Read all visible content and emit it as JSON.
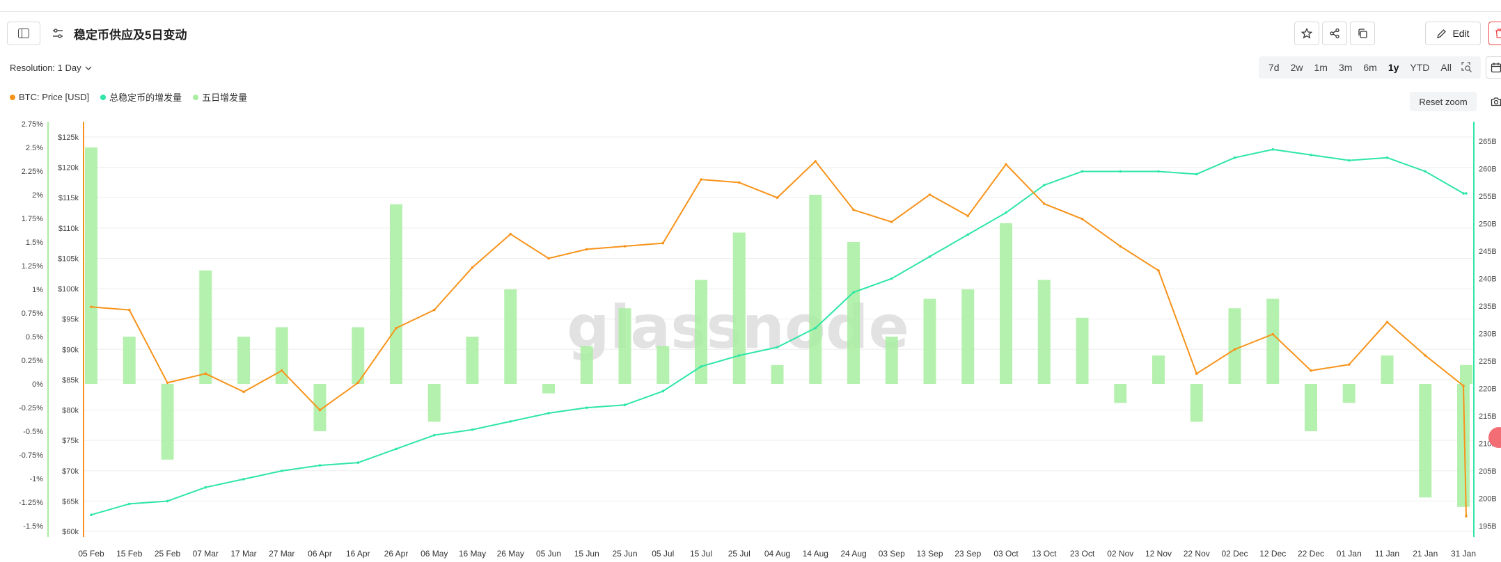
{
  "header": {
    "title": "稳定币供应及5日变动",
    "edit_label": "Edit",
    "resolution_label": "Resolution: 1 Day"
  },
  "timeframes": [
    "7d",
    "2w",
    "1m",
    "3m",
    "6m",
    "1y",
    "YTD",
    "All"
  ],
  "active_timeframe": "1y",
  "reset_zoom_label": "Reset zoom",
  "watermark": "glassnode",
  "icons": [
    "sidebar-toggle-icon",
    "settings-icon",
    "chevron-down-icon",
    "star-icon",
    "share-icon",
    "copy-icon",
    "pencil-icon",
    "trash-icon",
    "zoom-select-icon",
    "calendar-icon",
    "camera-icon"
  ],
  "colors": {
    "btc_price": "#f7931a",
    "stablecoin_supply": "#2ee6a6",
    "five_day_change": "#a8eea0",
    "delete": "#f04141"
  },
  "chart_data": {
    "type": "line",
    "legend_placement": "top-left",
    "grid": true,
    "series": [
      {
        "name": "BTC: Price [USD]",
        "kind": "line",
        "axis": "price",
        "color": "#f7931a",
        "x": [
          "05 Feb",
          "15 Feb",
          "25 Feb",
          "07 Mar",
          "17 Mar",
          "27 Mar",
          "06 Apr",
          "16 Apr",
          "26 Apr",
          "06 May",
          "16 May",
          "26 May",
          "05 Jun",
          "15 Jun",
          "25 Jun",
          "05 Jul",
          "15 Jul",
          "25 Jul",
          "04 Aug",
          "14 Aug",
          "24 Aug",
          "03 Sep",
          "13 Sep",
          "23 Sep",
          "03 Oct",
          "13 Oct",
          "23 Oct",
          "02 Nov",
          "12 Nov",
          "22 Nov",
          "02 Dec",
          "12 Dec",
          "22 Dec",
          "01 Jan",
          "11 Jan",
          "21 Jan",
          "31 Jan",
          "05 Feb"
        ],
        "values": [
          97000,
          96500,
          84500,
          86000,
          83000,
          86500,
          80000,
          84500,
          93500,
          96500,
          103500,
          109000,
          105000,
          106500,
          107000,
          107500,
          118000,
          117500,
          115000,
          121000,
          113000,
          111000,
          115500,
          112000,
          120500,
          114000,
          111500,
          107000,
          103000,
          86000,
          90000,
          92500,
          86500,
          87500,
          94500,
          89000,
          84000,
          62500
        ]
      },
      {
        "name": "总稳定币的增发量",
        "kind": "line",
        "axis": "supply",
        "color": "#2ee6a6",
        "x": [
          "05 Feb",
          "15 Feb",
          "25 Feb",
          "07 Mar",
          "17 Mar",
          "27 Mar",
          "06 Apr",
          "16 Apr",
          "26 Apr",
          "06 May",
          "16 May",
          "26 May",
          "05 Jun",
          "15 Jun",
          "25 Jun",
          "05 Jul",
          "15 Jul",
          "25 Jul",
          "04 Aug",
          "14 Aug",
          "24 Aug",
          "03 Sep",
          "13 Sep",
          "23 Sep",
          "03 Oct",
          "13 Oct",
          "23 Oct",
          "02 Nov",
          "12 Nov",
          "22 Nov",
          "02 Dec",
          "12 Dec",
          "22 Dec",
          "01 Jan",
          "11 Jan",
          "21 Jan",
          "31 Jan",
          "05 Feb"
        ],
        "values": [
          197.0,
          199.0,
          199.5,
          202.0,
          203.5,
          205.0,
          206.0,
          206.5,
          209.0,
          211.5,
          212.5,
          214.0,
          215.5,
          216.5,
          217.0,
          219.5,
          224.0,
          226.0,
          227.5,
          231.0,
          237.5,
          240.0,
          244.0,
          248.0,
          252.0,
          257.0,
          259.5,
          259.5,
          259.5,
          259.0,
          262.0,
          263.5,
          262.5,
          261.5,
          262.0,
          259.5,
          255.5,
          255.5
        ]
      },
      {
        "name": "五日增发量",
        "kind": "bar",
        "axis": "percent",
        "color": "#a8eea0",
        "x": [
          "05 Feb",
          "15 Feb",
          "25 Feb",
          "07 Mar",
          "17 Mar",
          "27 Mar",
          "06 Apr",
          "16 Apr",
          "26 Apr",
          "06 May",
          "16 May",
          "26 May",
          "05 Jun",
          "15 Jun",
          "25 Jun",
          "05 Jul",
          "15 Jul",
          "25 Jul",
          "04 Aug",
          "14 Aug",
          "24 Aug",
          "03 Sep",
          "13 Sep",
          "23 Sep",
          "03 Oct",
          "13 Oct",
          "23 Oct",
          "02 Nov",
          "12 Nov",
          "22 Nov",
          "02 Dec",
          "12 Dec",
          "22 Dec",
          "01 Jan",
          "11 Jan",
          "21 Jan",
          "31 Jan",
          "05 Feb"
        ],
        "values": [
          2.5,
          0.5,
          -0.8,
          1.2,
          0.5,
          0.6,
          -0.5,
          0.6,
          1.9,
          -0.4,
          0.5,
          1.0,
          -0.1,
          0.4,
          0.8,
          0.4,
          1.1,
          1.6,
          0.2,
          2.0,
          1.5,
          0.5,
          0.9,
          1.0,
          1.7,
          1.1,
          0.7,
          -0.2,
          0.3,
          -0.4,
          0.8,
          0.9,
          -0.5,
          -0.2,
          0.3,
          -1.2,
          -1.3,
          0.2
        ]
      }
    ],
    "x_ticks": [
      "05 Feb",
      "15 Feb",
      "25 Feb",
      "07 Mar",
      "17 Mar",
      "27 Mar",
      "06 Apr",
      "16 Apr",
      "26 Apr",
      "06 May",
      "16 May",
      "26 May",
      "05 Jun",
      "15 Jun",
      "25 Jun",
      "05 Jul",
      "15 Jul",
      "25 Jul",
      "04 Aug",
      "14 Aug",
      "24 Aug",
      "03 Sep",
      "13 Sep",
      "23 Sep",
      "03 Oct",
      "13 Oct",
      "23 Oct",
      "02 Nov",
      "12 Nov",
      "22 Nov",
      "02 Dec",
      "12 Dec",
      "22 Dec",
      "01 Jan",
      "11 Jan",
      "21 Jan",
      "31 Jan"
    ],
    "percent_axis": {
      "range": [
        -1.5,
        2.75
      ],
      "ticks": [
        "2.75%",
        "2.5%",
        "2.25%",
        "2%",
        "1.75%",
        "1.5%",
        "1.25%",
        "1%",
        "0.75%",
        "0.5%",
        "0.25%",
        "0%",
        "-0.25%",
        "-0.5%",
        "-0.75%",
        "-1%",
        "-1.25%",
        "-1.5%"
      ]
    },
    "price_axis": {
      "range": [
        60000,
        125000
      ],
      "ticks": [
        "$125k",
        "$120k",
        "$115k",
        "$110k",
        "$105k",
        "$100k",
        "$95k",
        "$90k",
        "$85k",
        "$80k",
        "$75k",
        "$70k",
        "$65k",
        "$60k"
      ]
    },
    "supply_axis": {
      "range": [
        195,
        265
      ],
      "ticks": [
        "265B",
        "260B",
        "255B",
        "250B",
        "245B",
        "240B",
        "235B",
        "230B",
        "225B",
        "220B",
        "215B",
        "210B",
        "205B",
        "200B",
        "195B"
      ]
    }
  }
}
